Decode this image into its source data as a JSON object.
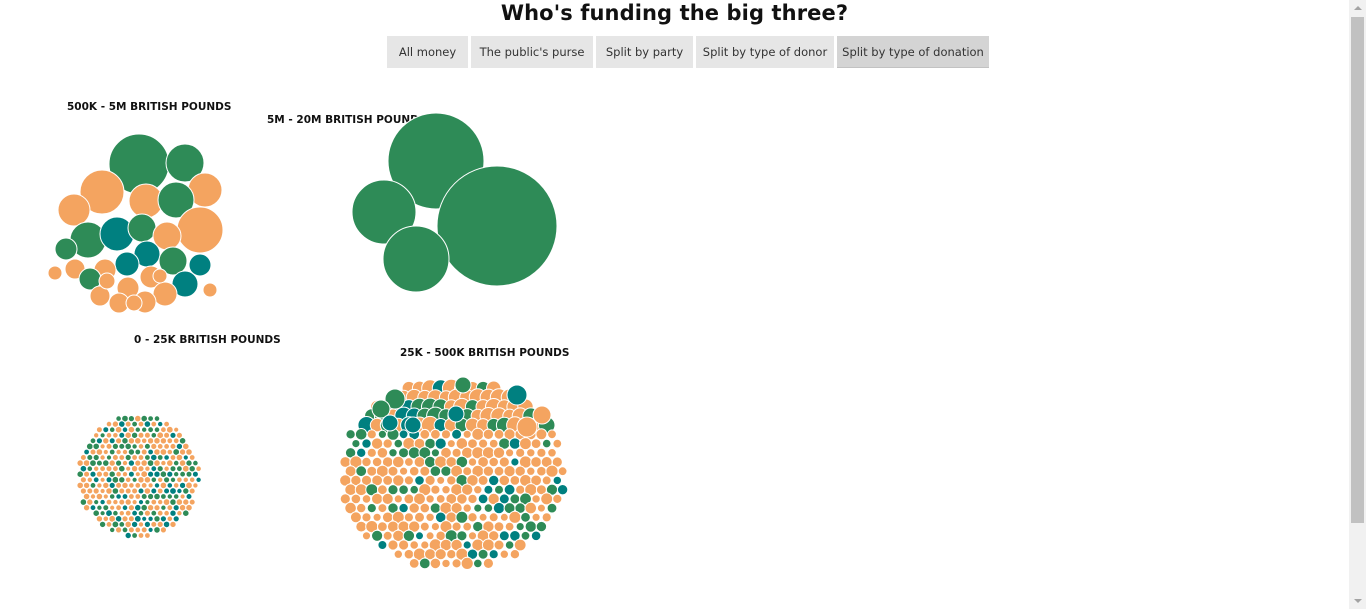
{
  "title": "Who's funding the big three?",
  "tabs": [
    {
      "label": "All money"
    },
    {
      "label": "The public's purse"
    },
    {
      "label": "Split by party"
    },
    {
      "label": "Split by type of donor"
    },
    {
      "label": "Split by type of donation",
      "active": true
    }
  ],
  "colors": {
    "green": "#2e8b57",
    "teal": "#008080",
    "orange": "#f4a460"
  },
  "chart_data": {
    "type": "bubble-cluster",
    "units": "British pounds",
    "groups": [
      {
        "label": "500K - 5M BRITISH POUNDS",
        "bubble_count": 32,
        "color_counts": {
          "green": 11,
          "teal": 6,
          "orange": 15
        }
      },
      {
        "label": "5M - 20M BRITISH POUNDS",
        "bubble_count": 4,
        "color_counts": {
          "green": 4,
          "teal": 0,
          "orange": 0
        }
      },
      {
        "label": "0 - 25K BRITISH POUNDS",
        "bubble_count": 340,
        "color_counts": {
          "green": 70,
          "teal": 60,
          "orange": 210
        }
      },
      {
        "label": "25K - 500K BRITISH POUNDS",
        "bubble_count": 380,
        "color_counts": {
          "green": 50,
          "teal": 36,
          "orange": 294
        }
      }
    ]
  }
}
